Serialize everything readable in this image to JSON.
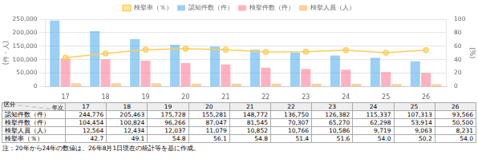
{
  "chart_data": {
    "type": "bar",
    "categories": [
      "17",
      "18",
      "19",
      "20",
      "21",
      "22",
      "23",
      "24",
      "25",
      "26"
    ],
    "series": [
      {
        "name": "認知件数（件）",
        "values": [
          244776,
          205463,
          175728,
          155281,
          148772,
          136750,
          126382,
          115337,
          107313,
          93566
        ],
        "value_labels": [
          "244,776",
          "205,463",
          "175,728",
          "155,281",
          "148,772",
          "136,750",
          "126,382",
          "115,337",
          "107,313",
          "93,566"
        ]
      },
      {
        "name": "検挙件数（件）",
        "values": [
          104454,
          100824,
          96266,
          87047,
          81545,
          70307,
          65270,
          62298,
          53914,
          50500
        ],
        "value_labels": [
          "104,454",
          "100,824",
          "96,266",
          "87,047",
          "81,545",
          "70,307",
          "65,270",
          "62,298",
          "53,914",
          "50,500"
        ]
      },
      {
        "name": "検挙人員（人）",
        "values": [
          12564,
          12434,
          12037,
          11079,
          10852,
          10766,
          10586,
          9719,
          9063,
          8231
        ],
        "value_labels": [
          "12,564",
          "12,434",
          "12,037",
          "11,079",
          "10,852",
          "10,766",
          "10,586",
          "9,719",
          "9,063",
          "8,231"
        ]
      },
      {
        "name": "検挙率（％）",
        "type": "line",
        "marker": "circle",
        "axis": "y2",
        "values": [
          42.7,
          49.1,
          54.8,
          56.1,
          54.8,
          51.4,
          51.6,
          54.0,
          50.2,
          54.0
        ],
        "value_labels": [
          "42.7",
          "49.1",
          "54.8",
          "56.1",
          "54.8",
          "51.4",
          "51.6",
          "54.0",
          "50.2",
          "54.0"
        ]
      }
    ],
    "ylabel": "(件・人)",
    "y2label": "(%)",
    "ylim": [
      0,
      250000
    ],
    "yticks": [
      0,
      {
        "value": 50000,
        "label": "50,000"
      },
      {
        "value": 100000,
        "label": "100,000"
      },
      {
        "value": 150000,
        "label": "150,000"
      },
      {
        "value": 200000,
        "label": "200,000"
      },
      {
        "value": 250000,
        "label": "250,000"
      }
    ],
    "y2lim": [
      0,
      100
    ],
    "y2ticks": [
      0,
      20,
      40,
      60,
      80,
      100
    ],
    "grid": true,
    "legend": "top",
    "annotations": [
      "区分",
      "年次",
      "注：20年から24年の数値は、26年8月1日現在の統計等を基に作成。"
    ]
  }
}
